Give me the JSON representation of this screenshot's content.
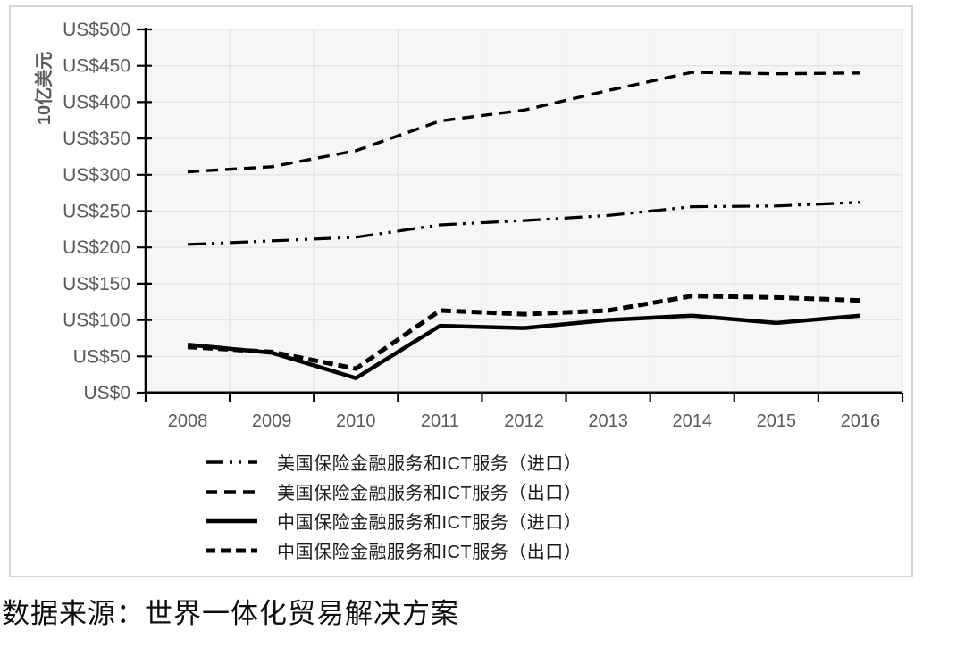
{
  "chart_data": {
    "type": "line",
    "title": "",
    "ylabel": "10亿美元",
    "xlabel": "",
    "ylim": [
      0,
      500
    ],
    "y_tick_step": 50,
    "y_tick_labels": [
      "US$0",
      "US$50",
      "US$100",
      "US$150",
      "US$200",
      "US$250",
      "US$300",
      "US$350",
      "US$400",
      "US$450",
      "US$500"
    ],
    "x": [
      "2008",
      "2009",
      "2010",
      "2011",
      "2012",
      "2013",
      "2014",
      "2015",
      "2016"
    ],
    "grid": true,
    "legend_position": "bottom-left",
    "line_color": "#000000",
    "axis_label_color": "#595959",
    "plot_bg_color": "#f6f6f6",
    "grid_color": "#e4e4e4",
    "series": [
      {
        "name": "美国保险金融服务和ICT服务（进口）",
        "key": "us-insurance-finance-ict-import",
        "line_style": "long-dash-dot-dot",
        "stroke_width": 3.2,
        "values": [
          204,
          209,
          214,
          231,
          237,
          244,
          256,
          257,
          262
        ]
      },
      {
        "name": "美国保险金融服务和ICT服务（出口）",
        "key": "us-insurance-finance-ict-export",
        "line_style": "dashed",
        "stroke_width": 3.4,
        "values": [
          304,
          311,
          333,
          374,
          389,
          416,
          441,
          439,
          440
        ]
      },
      {
        "name": "中国保险金融服务和ICT服务（进口）",
        "key": "cn-insurance-finance-ict-import",
        "line_style": "solid",
        "stroke_width": 4.5,
        "values": [
          66,
          55,
          20,
          92,
          89,
          100,
          106,
          96,
          106
        ]
      },
      {
        "name": "中国保险金融服务和ICT服务（出口）",
        "key": "cn-insurance-finance-ict-export",
        "line_style": "thick-dashed",
        "stroke_width": 5,
        "values": [
          63,
          56,
          33,
          113,
          108,
          113,
          133,
          131,
          127
        ]
      }
    ]
  },
  "source_note": "数据来源：世界一体化贸易解决方案"
}
